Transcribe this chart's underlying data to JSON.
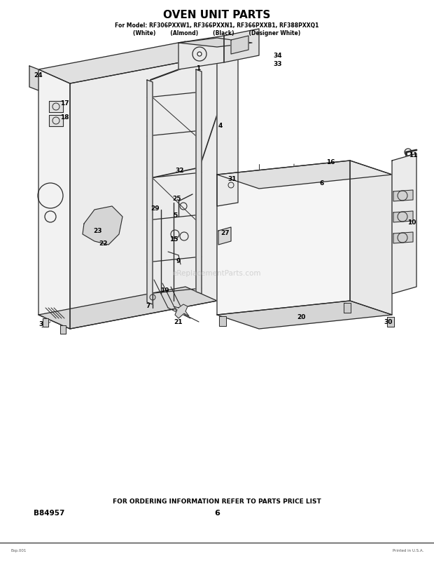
{
  "title": "OVEN UNIT PARTS",
  "subtitle_line1": "For Model: RF306PXXW1, RF366PXXN1, RF366PXXB1, RF388PXXQ1",
  "subtitle_line2": "(White)        (Almond)        (Black)        (Designer White)",
  "footer_text": "FOR ORDERING INFORMATION REFER TO PARTS PRICE LIST",
  "doc_number": "B84957",
  "page_number": "6",
  "bg_color": "#ffffff",
  "text_color": "#000000",
  "diagram_color": "#2a2a2a",
  "watermark": "eReplacementParts.com",
  "figsize": [
    6.2,
    8.04
  ],
  "dpi": 100
}
